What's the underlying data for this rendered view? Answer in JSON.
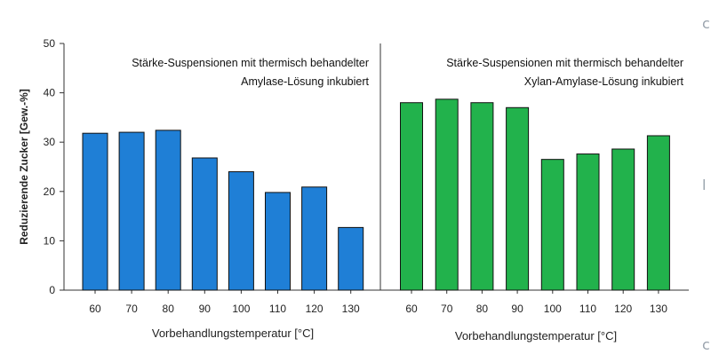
{
  "ylabel": "Reduzierende Zucker [Gew.-%]",
  "ylim": [
    0,
    50
  ],
  "yticks": [
    0,
    10,
    20,
    30,
    40,
    50
  ],
  "chart_data": [
    {
      "type": "bar",
      "color": "#1f7fd6",
      "annotation": [
        "Stärke-Suspensionen mit thermisch behandelter",
        "Amylase-Lösung inkubiert"
      ],
      "xlabel": "Vorbehandlungstemperatur [°C]",
      "categories": [
        "60",
        "70",
        "80",
        "90",
        "100",
        "110",
        "120",
        "130"
      ],
      "values": [
        31.8,
        32.0,
        32.4,
        26.8,
        24.0,
        19.8,
        20.9,
        12.7
      ]
    },
    {
      "type": "bar",
      "color": "#22b24c",
      "annotation": [
        "Stärke-Suspensionen mit thermisch behandelter",
        "Xylan-Amylase-Lösung inkubiert"
      ],
      "xlabel": "Vorbehandlungstemperatur [°C]",
      "categories": [
        "60",
        "70",
        "80",
        "90",
        "100",
        "110",
        "120",
        "130"
      ],
      "values": [
        38.0,
        38.7,
        38.0,
        37.0,
        26.5,
        27.6,
        28.6,
        31.3
      ]
    }
  ]
}
